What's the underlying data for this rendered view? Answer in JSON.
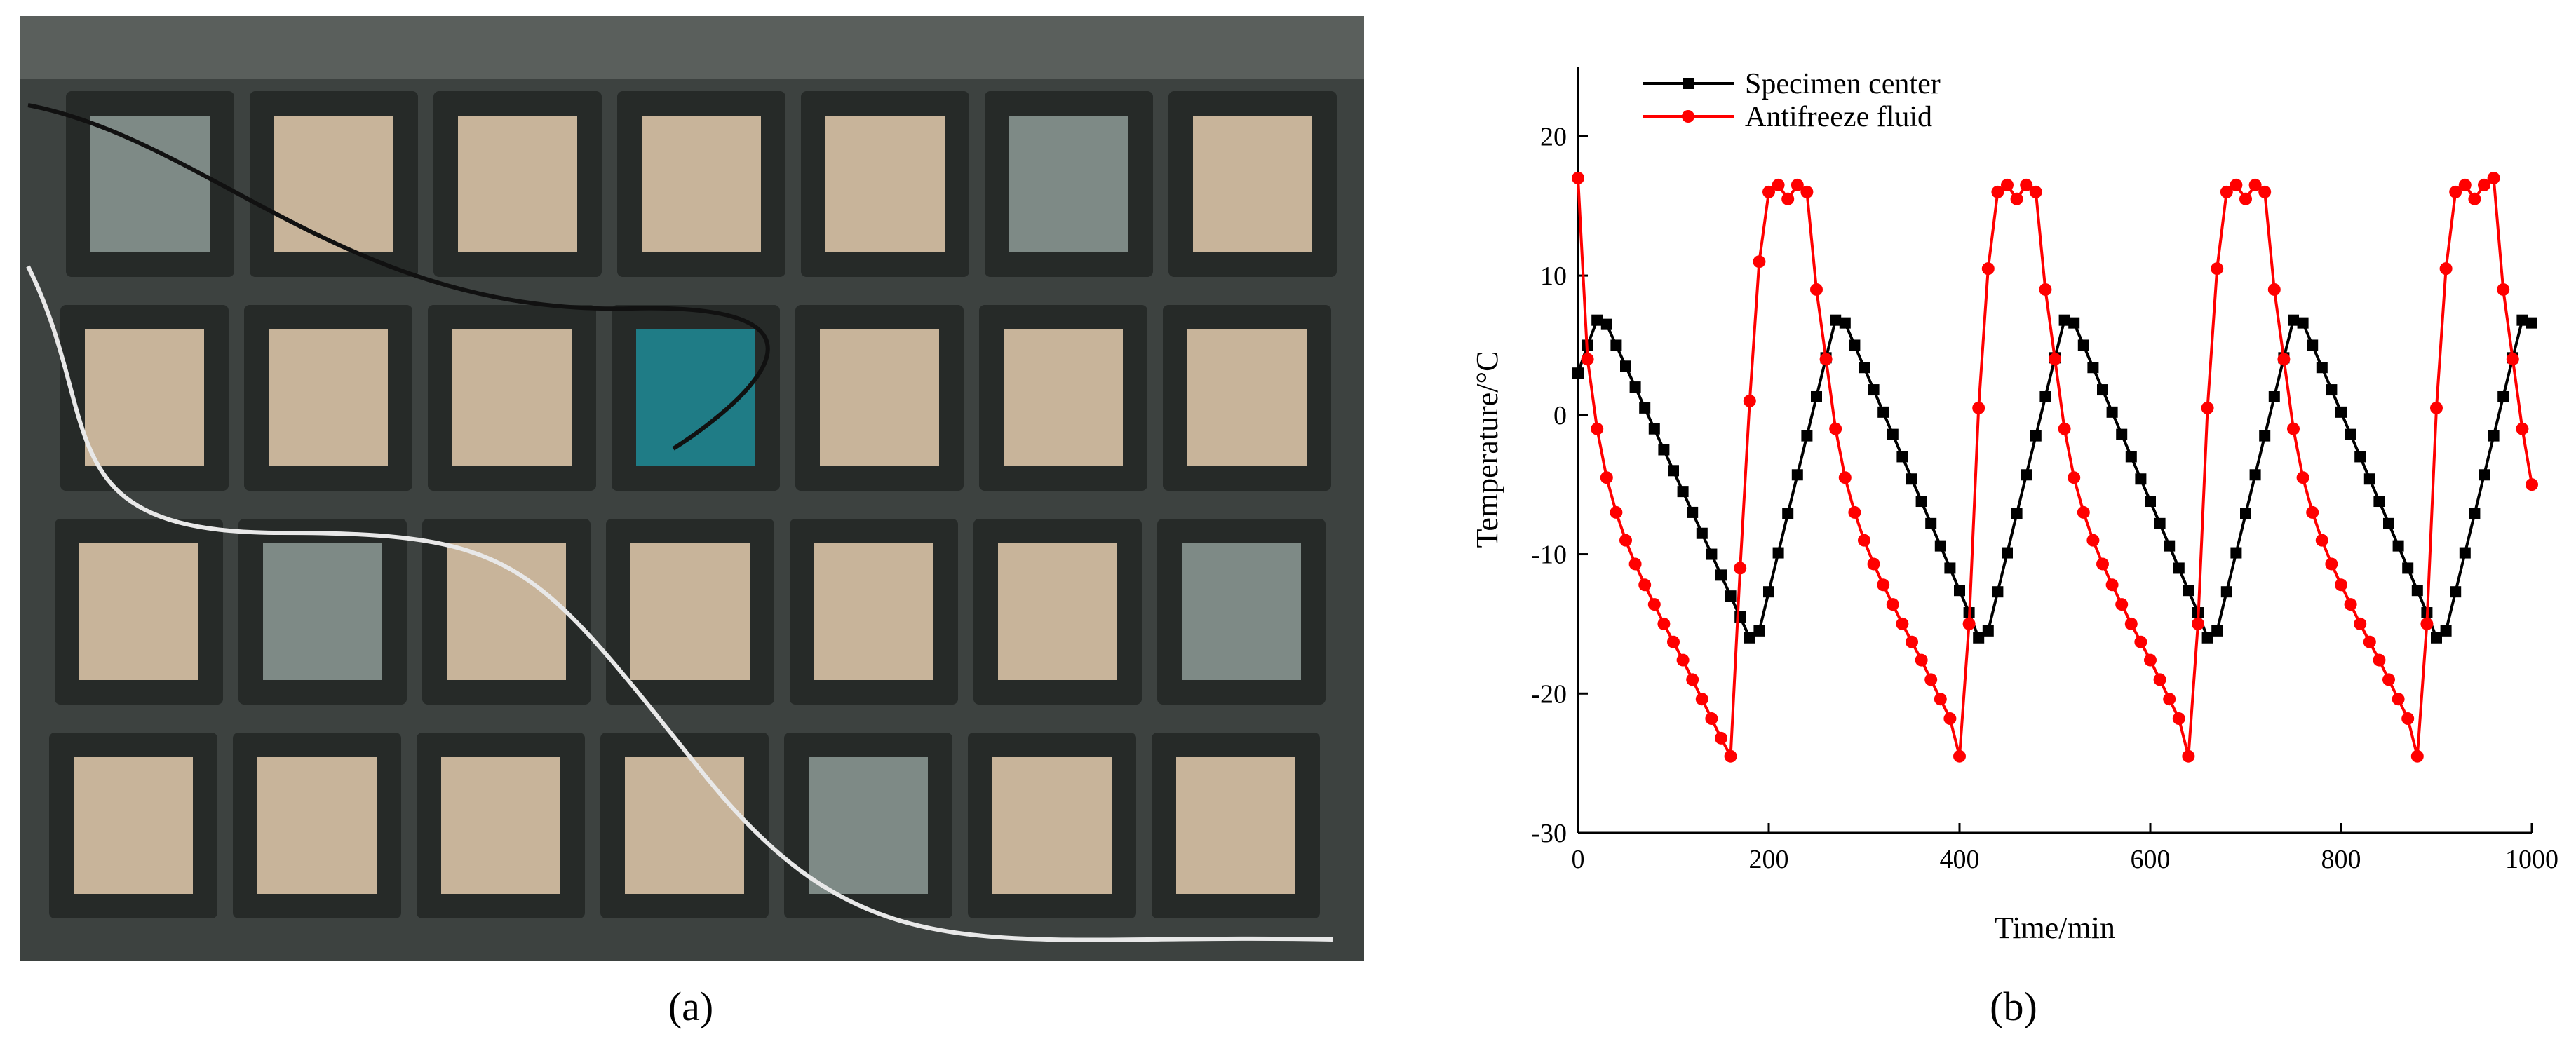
{
  "panels": {
    "a": "(a)",
    "b": "(b)"
  },
  "chart_data": {
    "type": "line",
    "x_label": "Time/min",
    "y_label": "Temperature/°C",
    "xlim": [
      0,
      1000
    ],
    "xticks": [
      0,
      200,
      400,
      600,
      800,
      1000
    ],
    "ylim": [
      -30,
      25
    ],
    "yticks": [
      -30,
      -20,
      -10,
      0,
      10,
      20
    ],
    "legend": "upper left",
    "x": [
      0,
      10,
      20,
      30,
      40,
      50,
      60,
      70,
      80,
      90,
      100,
      110,
      120,
      130,
      140,
      150,
      160,
      170,
      180,
      190,
      200,
      210,
      220,
      230,
      240,
      250,
      260,
      270,
      280,
      290,
      300,
      310,
      320,
      330,
      340,
      350,
      360,
      370,
      380,
      390,
      400,
      410,
      420,
      430,
      440,
      450,
      460,
      470,
      480,
      490,
      500,
      510,
      520,
      530,
      540,
      550,
      560,
      570,
      580,
      590,
      600,
      610,
      620,
      630,
      640,
      650,
      660,
      670,
      680,
      690,
      700,
      710,
      720,
      730,
      740,
      750,
      760,
      770,
      780,
      790,
      800,
      810,
      820,
      830,
      840,
      850,
      860,
      870,
      880,
      890,
      900,
      910,
      920,
      930,
      940,
      950,
      960,
      970,
      980,
      990,
      1000
    ],
    "series": [
      {
        "name": "Specimen center",
        "color": "#000000",
        "marker": "square",
        "values": [
          3,
          5,
          6.8,
          6.5,
          5,
          3.5,
          2,
          0.5,
          -1,
          -2.5,
          -4,
          -5.5,
          -7,
          -8.5,
          -10,
          -11.5,
          -13,
          -14.5,
          -16,
          -15.5,
          -12.7,
          -9.9,
          -7.1,
          -4.3,
          -1.5,
          1.3,
          4.1,
          6.8,
          6.6,
          5,
          3.4,
          1.8,
          0.2,
          -1.4,
          -3,
          -4.6,
          -6.2,
          -7.8,
          -9.4,
          -11,
          -12.6,
          -14.2,
          -16,
          -15.5,
          -12.7,
          -9.9,
          -7.1,
          -4.3,
          -1.5,
          1.3,
          4.1,
          6.8,
          6.6,
          5,
          3.4,
          1.8,
          0.2,
          -1.4,
          -3,
          -4.6,
          -6.2,
          -7.8,
          -9.4,
          -11,
          -12.6,
          -14.2,
          -16,
          -15.5,
          -12.7,
          -9.9,
          -7.1,
          -4.3,
          -1.5,
          1.3,
          4.1,
          6.8,
          6.6,
          5,
          3.4,
          1.8,
          0.2,
          -1.4,
          -3,
          -4.6,
          -6.2,
          -7.8,
          -9.4,
          -11,
          -12.6,
          -14.2,
          -16,
          -15.5,
          -12.7,
          -9.9,
          -7.1,
          -4.3,
          -1.5,
          1.3,
          4.1,
          6.8,
          6.6
        ]
      },
      {
        "name": "Antifreeze fluid",
        "color": "#ff0000",
        "marker": "circle",
        "values": [
          17,
          4,
          -1,
          -4.5,
          -7,
          -9,
          -10.7,
          -12.2,
          -13.6,
          -15,
          -16.3,
          -17.6,
          -19,
          -20.4,
          -21.8,
          -23.2,
          -24.5,
          -11,
          1,
          11,
          16,
          16.5,
          15.5,
          16.5,
          16,
          9,
          4,
          -1,
          -4.5,
          -7,
          -9,
          -10.7,
          -12.2,
          -13.6,
          -15,
          -16.3,
          -17.6,
          -19,
          -20.4,
          -21.8,
          -24.5,
          -15,
          0.5,
          10.5,
          16,
          16.5,
          15.5,
          16.5,
          16,
          9,
          4,
          -1,
          -4.5,
          -7,
          -9,
          -10.7,
          -12.2,
          -13.6,
          -15,
          -16.3,
          -17.6,
          -19,
          -20.4,
          -21.8,
          -24.5,
          -15,
          0.5,
          10.5,
          16,
          16.5,
          15.5,
          16.5,
          16,
          9,
          4,
          -1,
          -4.5,
          -7,
          -9,
          -10.7,
          -12.2,
          -13.6,
          -15,
          -16.3,
          -17.6,
          -19,
          -20.4,
          -21.8,
          -24.5,
          -15,
          0.5,
          10.5,
          16,
          16.5,
          15.5,
          16.5,
          17,
          9,
          4,
          -1,
          -5
        ]
      }
    ]
  }
}
